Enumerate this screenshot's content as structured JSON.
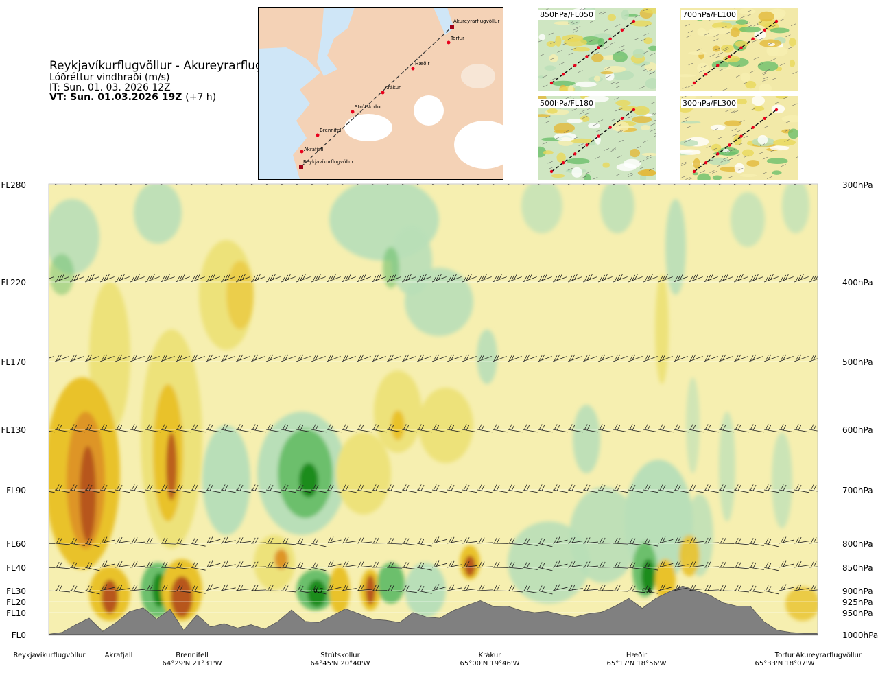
{
  "header": {
    "title": "Reykjavíkurflugvöllur - Akureyrarflugvöllur",
    "subtitle": "Lóðréttur vindhraði (m/s)",
    "issue_time": "IT: Sun. 01. 03. 2026 12Z",
    "valid_time": "VT: Sun. 01.03.2026 19Z",
    "valid_offset": "(+7 h)"
  },
  "route_map": {
    "waypoints": [
      "Akureyrarflugvöllur",
      "Torfur",
      "Hæðir",
      "Krákur",
      "Strútskollur",
      "Brennifell",
      "Akrafjall",
      "Reykjavíkurflugvöllur"
    ],
    "colors": {
      "sea": "#cfe6f7",
      "land": "#f4d2b6",
      "glacier": "#ffffff",
      "route": "#333333",
      "point": "#e8001c"
    }
  },
  "mini_maps": [
    {
      "label": "850hPa/FL050"
    },
    {
      "label": "700hPa/FL100"
    },
    {
      "label": "500hPa/FL180"
    },
    {
      "label": "300hPa/FL300"
    }
  ],
  "chart_data": {
    "type": "heatmap",
    "variable": "vertical wind speed (m/s)",
    "y_left_ticks": [
      "FL280",
      "FL220",
      "FL170",
      "FL130",
      "FL90",
      "FL60",
      "FL40",
      "FL30",
      "FL20",
      "FL10",
      "FL0"
    ],
    "y_right_ticks": [
      "300hPa",
      "400hPa",
      "500hPa",
      "600hPa",
      "700hPa",
      "800hPa",
      "850hPa",
      "900hPa",
      "925hPa",
      "950hPa",
      "1000hPa"
    ],
    "x_locations": [
      {
        "name": "Reykjavíkurflugvöllur",
        "coord": ""
      },
      {
        "name": "Akrafjall",
        "coord": ""
      },
      {
        "name": "Brennifell",
        "coord": "64°29'N 21°31'W"
      },
      {
        "name": "Strútskollur",
        "coord": "64°45'N 20°40'W"
      },
      {
        "name": "Krákur",
        "coord": "65°00'N 19°46'W"
      },
      {
        "name": "Hæðir",
        "coord": "65°17'N 18°56'W"
      },
      {
        "name": "Torfur",
        "coord": "65°33'N 18°07'W"
      },
      {
        "name": "Akureyrarflugvöllur",
        "coord": ""
      }
    ],
    "contour_labels": [
      "0.7",
      "0.6"
    ],
    "terrain_profile": [
      0.02,
      0.1,
      0.45,
      0.75,
      0.15,
      0.55,
      1.1,
      1.45,
      0.7,
      1.3,
      0.2,
      0.9,
      0.35,
      0.5,
      0.3,
      0.45,
      0.25,
      0.6,
      1.25,
      0.6,
      0.55,
      0.85,
      1.35,
      0.95,
      0.7,
      0.65,
      0.55,
      1.0,
      0.8,
      0.75,
      1.2,
      1.65,
      2.1,
      1.55,
      1.6,
      1.2,
      1.0,
      1.1,
      0.9,
      0.8,
      0.95,
      1.05,
      1.6,
      2.3,
      1.4,
      2.3,
      2.9,
      3.2,
      3.0,
      2.6,
      1.9,
      1.6,
      1.6,
      0.6,
      0.2,
      0.1,
      0.05,
      0.05
    ],
    "legend": "none",
    "grid": false,
    "palette": {
      "strong_up": "#1e8c1e",
      "up": "#6cbf6c",
      "weak_up": "#b9dfb8",
      "neutral": "#f6efb0",
      "weak_down": "#ede27a",
      "down": "#e9c22c",
      "strong_down": "#de9527",
      "very_strong_down": "#b7561a",
      "terrain": "#808080"
    }
  }
}
